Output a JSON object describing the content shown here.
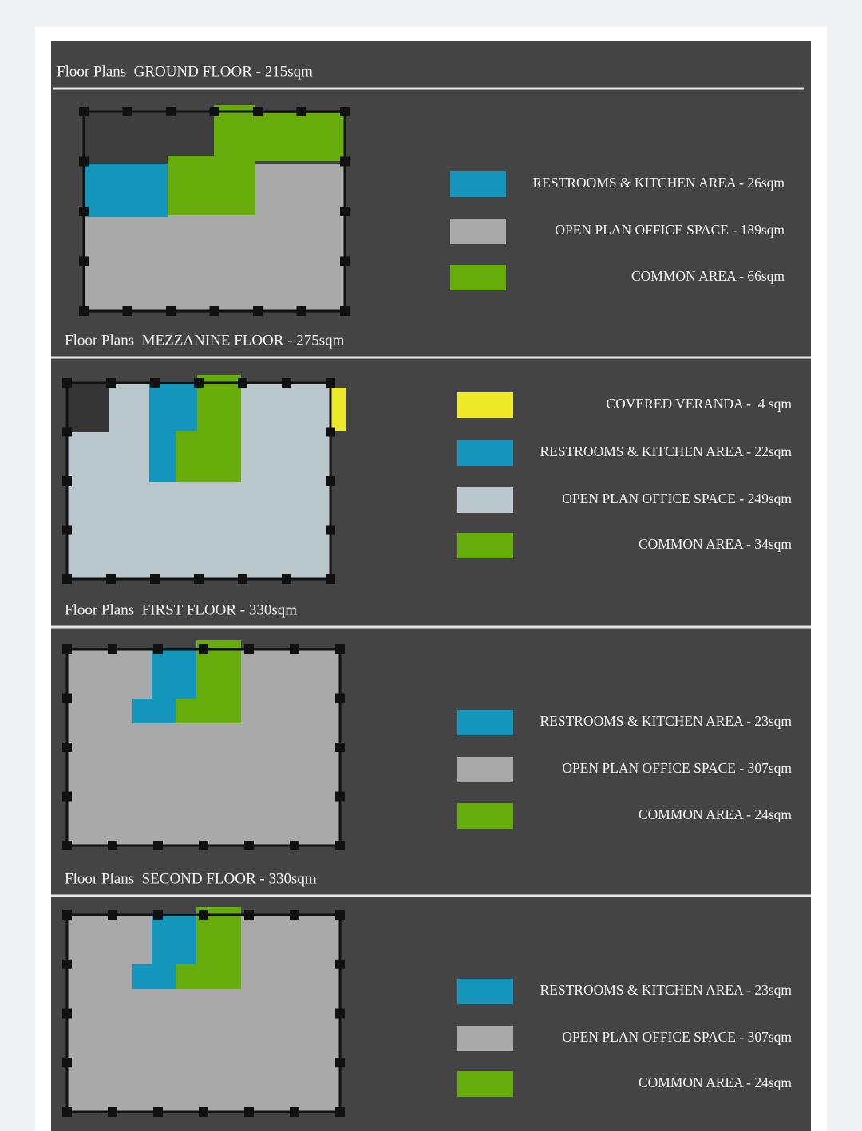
{
  "floors": [
    {
      "title": "Floor Plans  GROUND FLOOR - 215sqm",
      "legend": [
        {
          "label": "RESTROOMS & KITCHEN AREA - 26sqm",
          "color": "#1496bc"
        },
        {
          "label": "OPEN PLAN OFFICE SPACE - 189sqm",
          "color": "#a9a9a9"
        },
        {
          "label": "COMMON AREA - 66sqm",
          "color": "#66ad0c"
        }
      ]
    },
    {
      "title": "Floor Plans  MEZZANINE FLOOR - 275sqm",
      "legend": [
        {
          "label": "COVERED VERANDA -  4 sqm",
          "color": "#eeea2a"
        },
        {
          "label": "RESTROOMS & KITCHEN AREA - 22sqm",
          "color": "#1496bc"
        },
        {
          "label": "OPEN PLAN OFFICE SPACE - 249sqm",
          "color": "#b9c6cb"
        },
        {
          "label": "COMMON AREA - 34sqm",
          "color": "#66ad0c"
        }
      ]
    },
    {
      "title": "Floor Plans  FIRST FLOOR - 330sqm",
      "legend": [
        {
          "label": "RESTROOMS & KITCHEN AREA - 23sqm",
          "color": "#1496bc"
        },
        {
          "label": "OPEN PLAN OFFICE SPACE - 307sqm",
          "color": "#a9a9a9"
        },
        {
          "label": "COMMON AREA - 24sqm",
          "color": "#66ad0c"
        }
      ]
    },
    {
      "title": "Floor Plans  SECOND FLOOR - 330sqm",
      "legend": [
        {
          "label": "RESTROOMS & KITCHEN AREA - 23sqm",
          "color": "#1496bc"
        },
        {
          "label": "OPEN PLAN OFFICE SPACE - 307sqm",
          "color": "#a9a9a9"
        },
        {
          "label": "COMMON AREA - 24sqm",
          "color": "#66ad0c"
        }
      ]
    }
  ]
}
